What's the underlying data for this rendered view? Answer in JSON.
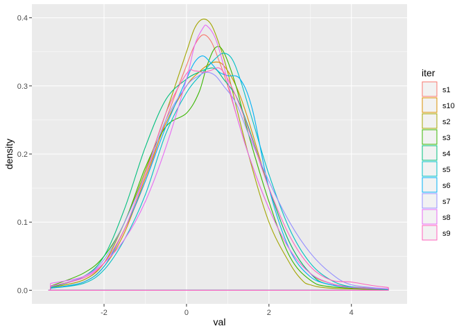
{
  "chart_data": {
    "type": "line",
    "xlabel": "val",
    "ylabel": "density",
    "xlim": [
      -3.75,
      5.35
    ],
    "ylim": [
      -0.02,
      0.42
    ],
    "x_ticks": [
      -2,
      0,
      2,
      4
    ],
    "x_tick_labels": [
      "-2",
      "0",
      "2",
      "4"
    ],
    "y_ticks": [
      0.0,
      0.1,
      0.2,
      0.3,
      0.4
    ],
    "y_tick_labels": [
      "0.0",
      "0.1",
      "0.2",
      "0.3",
      "0.4"
    ],
    "grid": true,
    "legend": {
      "title": "iter",
      "position": "right"
    },
    "baseline_range": [
      -3.35,
      4.9
    ],
    "series": [
      {
        "name": "s1",
        "color": "#F8766D",
        "x": [
          -3.3,
          -2.5,
          -2,
          -1.5,
          -1,
          -0.5,
          0,
          0.2,
          0.4,
          0.6,
          0.8,
          1,
          1.5,
          2,
          2.5,
          3,
          3.5,
          4,
          4.9
        ],
        "y": [
          0.004,
          0.015,
          0.04,
          0.09,
          0.16,
          0.25,
          0.33,
          0.36,
          0.375,
          0.365,
          0.335,
          0.3,
          0.2,
          0.12,
          0.06,
          0.025,
          0.01,
          0.005,
          0.002
        ]
      },
      {
        "name": "s10",
        "color": "#D89000",
        "x": [
          -3.3,
          -2.5,
          -2,
          -1.5,
          -1,
          -0.5,
          0,
          0.3,
          0.5,
          0.7,
          0.9,
          1.2,
          1.5,
          2,
          2.5,
          3,
          3.5,
          4,
          4.9
        ],
        "y": [
          0.003,
          0.012,
          0.035,
          0.085,
          0.165,
          0.245,
          0.3,
          0.32,
          0.33,
          0.335,
          0.33,
          0.3,
          0.25,
          0.15,
          0.07,
          0.025,
          0.01,
          0.004,
          0.001
        ]
      },
      {
        "name": "s2",
        "color": "#A3A500",
        "x": [
          -3.3,
          -2.5,
          -2,
          -1.5,
          -1,
          -0.5,
          0,
          0.2,
          0.4,
          0.6,
          0.8,
          1,
          1.5,
          2,
          2.5,
          2.8,
          3,
          3.5,
          4.9
        ],
        "y": [
          0.004,
          0.015,
          0.04,
          0.1,
          0.175,
          0.26,
          0.35,
          0.385,
          0.398,
          0.39,
          0.36,
          0.32,
          0.2,
          0.1,
          0.04,
          0.015,
          0.008,
          0.003,
          0.001
        ]
      },
      {
        "name": "s3",
        "color": "#39B600",
        "x": [
          -3.3,
          -2.5,
          -2,
          -1.5,
          -1,
          -0.5,
          0,
          0.3,
          0.5,
          0.7,
          0.9,
          1.2,
          1.5,
          2,
          2.5,
          3,
          3.5,
          4.9
        ],
        "y": [
          0.006,
          0.025,
          0.05,
          0.1,
          0.18,
          0.24,
          0.26,
          0.29,
          0.33,
          0.356,
          0.35,
          0.3,
          0.23,
          0.13,
          0.05,
          0.015,
          0.005,
          0.001
        ]
      },
      {
        "name": "s4",
        "color": "#00BF7D",
        "x": [
          -3.3,
          -2.5,
          -2,
          -1.5,
          -1,
          -0.5,
          0,
          0.3,
          0.5,
          0.7,
          0.9,
          1.2,
          1.5,
          2,
          2.5,
          3,
          3.5,
          4.9
        ],
        "y": [
          0.004,
          0.02,
          0.05,
          0.12,
          0.21,
          0.28,
          0.31,
          0.32,
          0.325,
          0.325,
          0.31,
          0.285,
          0.24,
          0.15,
          0.07,
          0.025,
          0.008,
          0.001
        ]
      },
      {
        "name": "s5",
        "color": "#00BFC4",
        "x": [
          -3.3,
          -2.5,
          -2,
          -1.5,
          -1,
          -0.5,
          0,
          0.4,
          0.7,
          0.9,
          1.1,
          1.3,
          1.6,
          2,
          2.5,
          3,
          3.5,
          4,
          4.9
        ],
        "y": [
          0.003,
          0.01,
          0.03,
          0.075,
          0.14,
          0.23,
          0.29,
          0.32,
          0.34,
          0.348,
          0.34,
          0.31,
          0.25,
          0.17,
          0.09,
          0.04,
          0.015,
          0.005,
          0.001
        ]
      },
      {
        "name": "s6",
        "color": "#00B0F6",
        "x": [
          -3.3,
          -2.5,
          -2,
          -1.5,
          -1,
          -0.5,
          0,
          0.2,
          0.4,
          0.6,
          0.8,
          1,
          1.3,
          1.6,
          2,
          2.5,
          3,
          3.5,
          4,
          4.9
        ],
        "y": [
          0.003,
          0.012,
          0.035,
          0.09,
          0.16,
          0.24,
          0.31,
          0.335,
          0.344,
          0.333,
          0.32,
          0.315,
          0.31,
          0.265,
          0.15,
          0.06,
          0.02,
          0.008,
          0.004,
          0.002
        ]
      },
      {
        "name": "s7",
        "color": "#9590FF",
        "x": [
          -3.3,
          -2.5,
          -2,
          -1.5,
          -1,
          -0.5,
          0,
          0.3,
          0.5,
          0.7,
          0.9,
          1.2,
          1.5,
          2,
          2.5,
          3,
          3.5,
          4,
          4.9
        ],
        "y": [
          0.005,
          0.02,
          0.045,
          0.1,
          0.17,
          0.25,
          0.3,
          0.315,
          0.32,
          0.315,
          0.3,
          0.275,
          0.23,
          0.16,
          0.1,
          0.055,
          0.025,
          0.008,
          0.002
        ]
      },
      {
        "name": "s8",
        "color": "#E76BF3",
        "x": [
          -3.3,
          -2.5,
          -2,
          -1.5,
          -1,
          -0.5,
          0,
          0.2,
          0.4,
          0.5,
          0.7,
          0.9,
          1.2,
          1.5,
          2,
          2.5,
          3,
          3.5,
          4,
          4.9
        ],
        "y": [
          0.01,
          0.02,
          0.04,
          0.075,
          0.13,
          0.21,
          0.31,
          0.36,
          0.385,
          0.388,
          0.37,
          0.33,
          0.26,
          0.2,
          0.12,
          0.06,
          0.025,
          0.01,
          0.004,
          0.002
        ]
      },
      {
        "name": "s9",
        "color": "#FF62BC",
        "x": [
          -3.3,
          -2.5,
          -2,
          -1.5,
          -1,
          -0.5,
          0,
          0.2,
          0.4,
          0.6,
          0.8,
          1,
          1.3,
          1.6,
          2,
          2.5,
          3,
          3.5,
          4,
          4.5,
          4.9
        ],
        "y": [
          0.006,
          0.018,
          0.04,
          0.09,
          0.17,
          0.26,
          0.318,
          0.322,
          0.32,
          0.323,
          0.326,
          0.31,
          0.27,
          0.22,
          0.15,
          0.08,
          0.035,
          0.015,
          0.012,
          0.007,
          0.004
        ]
      }
    ]
  }
}
